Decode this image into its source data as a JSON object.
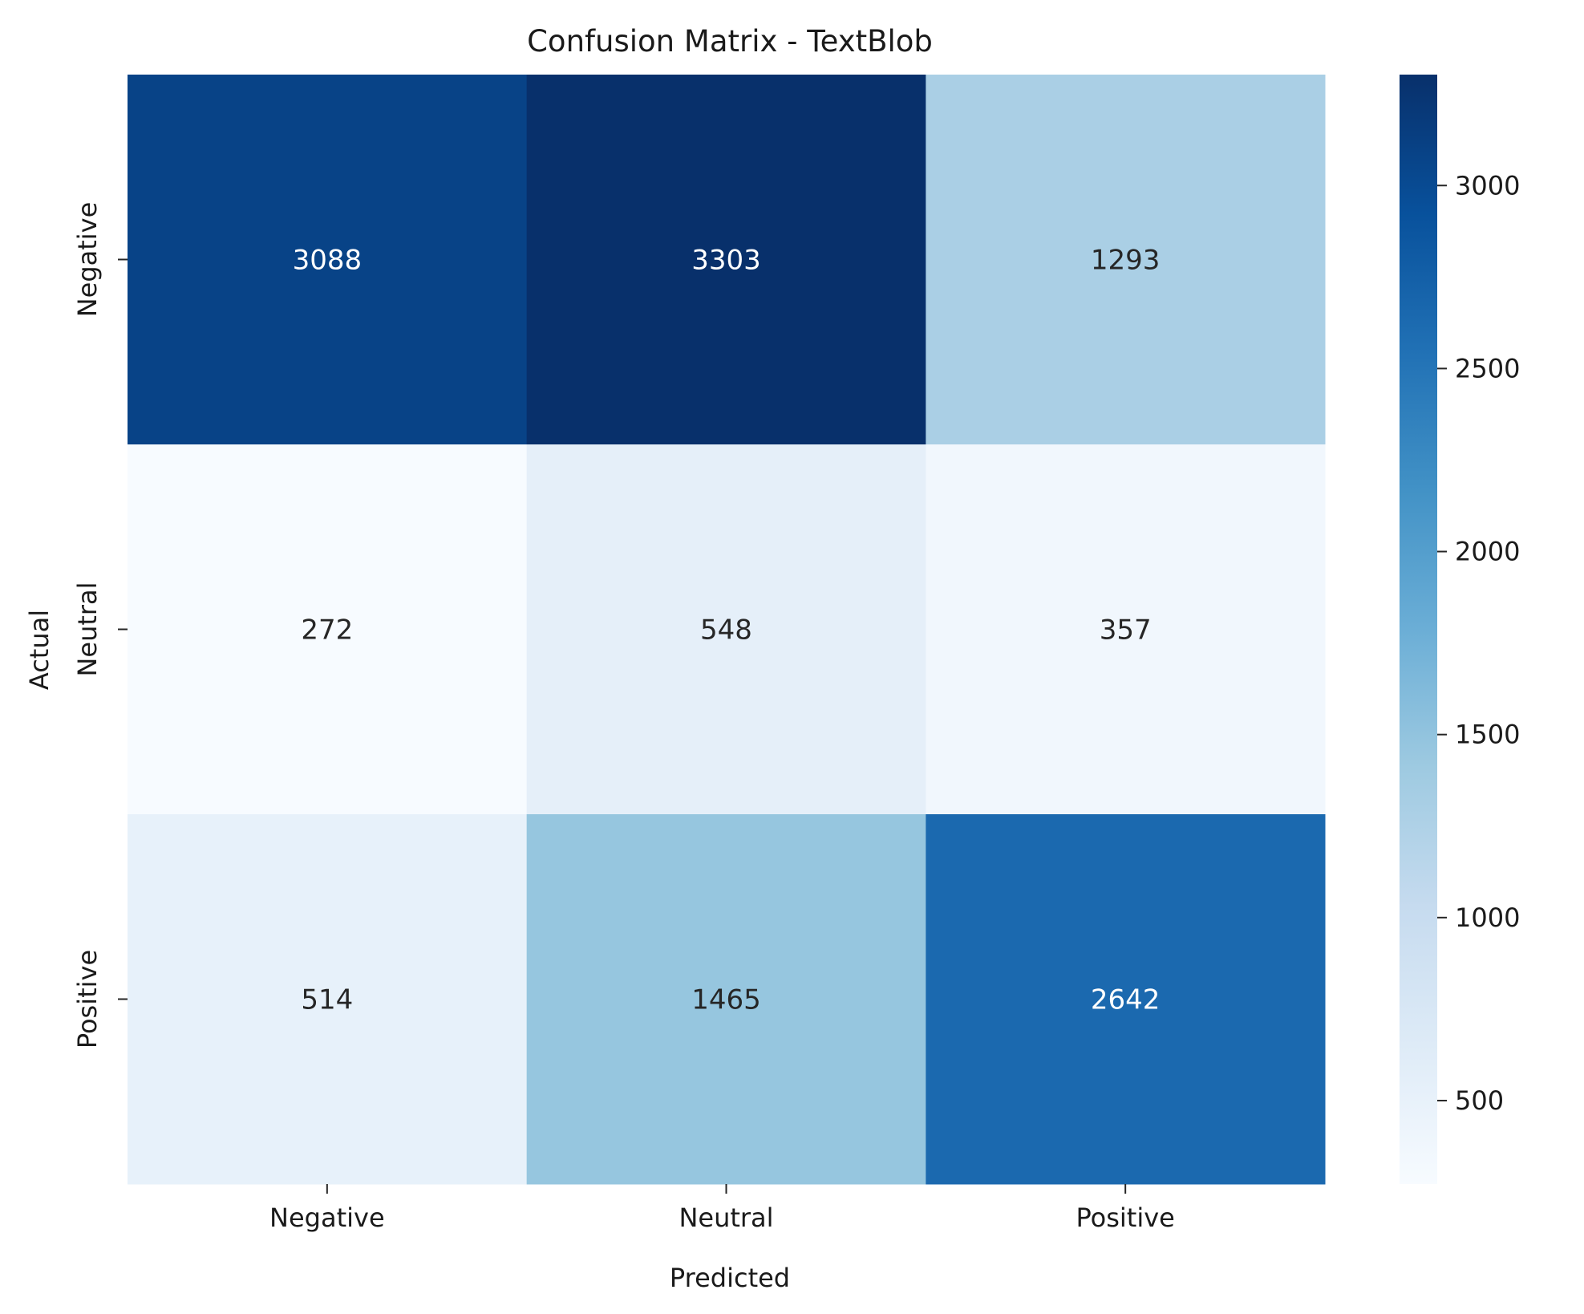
{
  "chart_data": {
    "type": "heatmap",
    "title": "Confusion Matrix - TextBlob",
    "xlabel": "Predicted",
    "ylabel": "Actual",
    "x_categories": [
      "Negative",
      "Neutral",
      "Positive"
    ],
    "y_categories": [
      "Negative",
      "Neutral",
      "Positive"
    ],
    "values": [
      [
        3088,
        3303,
        1293
      ],
      [
        272,
        548,
        357
      ],
      [
        514,
        1465,
        2642
      ]
    ],
    "colorbar": {
      "colormap": "Blues",
      "range": [
        272,
        3303
      ],
      "ticks": [
        500,
        1000,
        1500,
        2000,
        2500,
        3000
      ],
      "tick_labels": [
        "500",
        "1000",
        "1500",
        "2000",
        "2500",
        "3000"
      ]
    },
    "grid": false,
    "legend": "colorbar-right"
  }
}
